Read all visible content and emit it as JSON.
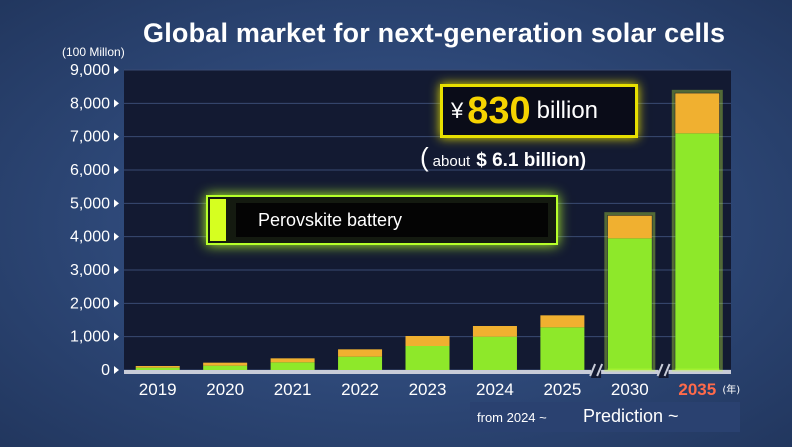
{
  "chart_data": {
    "type": "bar",
    "stacked": true,
    "title": "Global market for next-generation solar cells",
    "unit_label": "(100 Millon)",
    "categories": [
      "2019",
      "2020",
      "2021",
      "2022",
      "2023",
      "2024",
      "2025",
      "2030",
      "2035"
    ],
    "highlight_category": "2035",
    "year_suffix": "(年)",
    "series": [
      {
        "color": "#8ee82a",
        "values": [
          70,
          130,
          230,
          400,
          720,
          1000,
          1280,
          3950,
          7100
        ]
      },
      {
        "color": "#f0b030",
        "values": [
          50,
          90,
          120,
          220,
          300,
          320,
          360,
          680,
          1200
        ]
      }
    ],
    "ylim": [
      0,
      9000
    ],
    "yticks": [
      "0",
      "1,000",
      "2,000",
      "3,000",
      "4,000",
      "5,000",
      "6,000",
      "7,000",
      "8,000",
      "9,000"
    ],
    "axis_break_after": [
      "2025",
      "2030"
    ],
    "grid": true
  },
  "callouts": {
    "total": {
      "currency": "¥",
      "value": "830",
      "unit": "billion"
    },
    "usd": {
      "open": "(",
      "about": "about",
      "value": "$ 6.1 billion)"
    },
    "legend": {
      "label": "Perovskite battery"
    }
  },
  "footer": {
    "from": "from 2024 ~",
    "prediction": "Prediction ~"
  },
  "colors": {
    "background": "#2e4778",
    "plot_bg": "#131a32",
    "green": "#8ee82a",
    "orange": "#f0b030",
    "highlight_year": "#ff6a4a",
    "callout_yellow": "#e8e000"
  }
}
